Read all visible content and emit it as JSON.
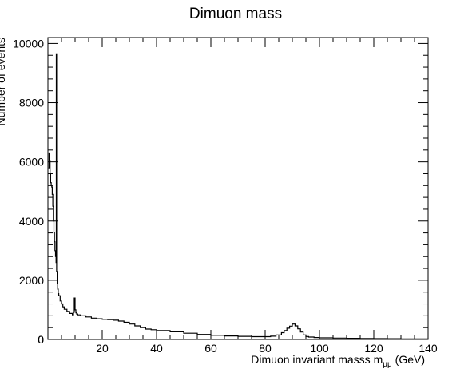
{
  "chart_data": {
    "type": "line",
    "title": "Dimuon mass",
    "xlabel": "Dimuon invariant masss m",
    "xlabel_subscript": "μμ",
    "xlabel_unit": " (GeV)",
    "ylabel": "Number of events",
    "xlim": [
      0,
      140
    ],
    "ylim": [
      0,
      10200
    ],
    "x_ticks": [
      20,
      40,
      60,
      80,
      100,
      120,
      140
    ],
    "y_ticks": [
      0,
      2000,
      4000,
      6000,
      8000,
      10000
    ],
    "grid": false,
    "legend": "none",
    "line_color": "#000000",
    "series": [
      {
        "x": [
          0.2,
          0.4,
          0.6,
          0.8,
          1.0,
          1.2,
          1.4,
          1.6,
          1.8,
          2.0,
          2.2,
          2.4,
          2.6,
          2.8,
          3.0,
          3.1,
          3.2,
          3.4,
          3.6,
          3.8,
          4.0,
          4.5,
          5,
          5.5,
          6,
          7,
          8,
          9,
          9.4,
          9.7,
          10,
          10.3,
          10.6,
          11,
          12,
          14,
          16,
          18,
          20,
          22,
          24,
          26,
          28,
          30,
          32,
          34,
          36,
          38,
          40,
          45,
          50,
          55,
          60,
          65,
          70,
          75,
          80,
          82,
          84,
          86,
          87,
          88,
          89,
          90,
          91,
          92,
          93,
          94,
          95,
          96,
          98,
          100,
          105,
          110,
          115,
          120,
          125,
          130,
          135,
          140
        ],
        "y": [
          5800,
          6300,
          6050,
          5600,
          5300,
          5200,
          5150,
          4900,
          4500,
          4000,
          3600,
          3300,
          3000,
          2800,
          2600,
          9650,
          2300,
          1900,
          1700,
          1550,
          1480,
          1300,
          1200,
          1100,
          1020,
          950,
          880,
          830,
          920,
          1400,
          1000,
          900,
          860,
          830,
          800,
          760,
          720,
          700,
          680,
          670,
          650,
          620,
          580,
          520,
          460,
          400,
          350,
          330,
          300,
          260,
          210,
          170,
          140,
          120,
          105,
          95,
          95,
          110,
          150,
          230,
          300,
          380,
          450,
          520,
          460,
          360,
          250,
          150,
          100,
          80,
          65,
          55,
          45,
          38,
          32,
          28,
          24,
          20,
          18,
          15
        ]
      }
    ]
  }
}
